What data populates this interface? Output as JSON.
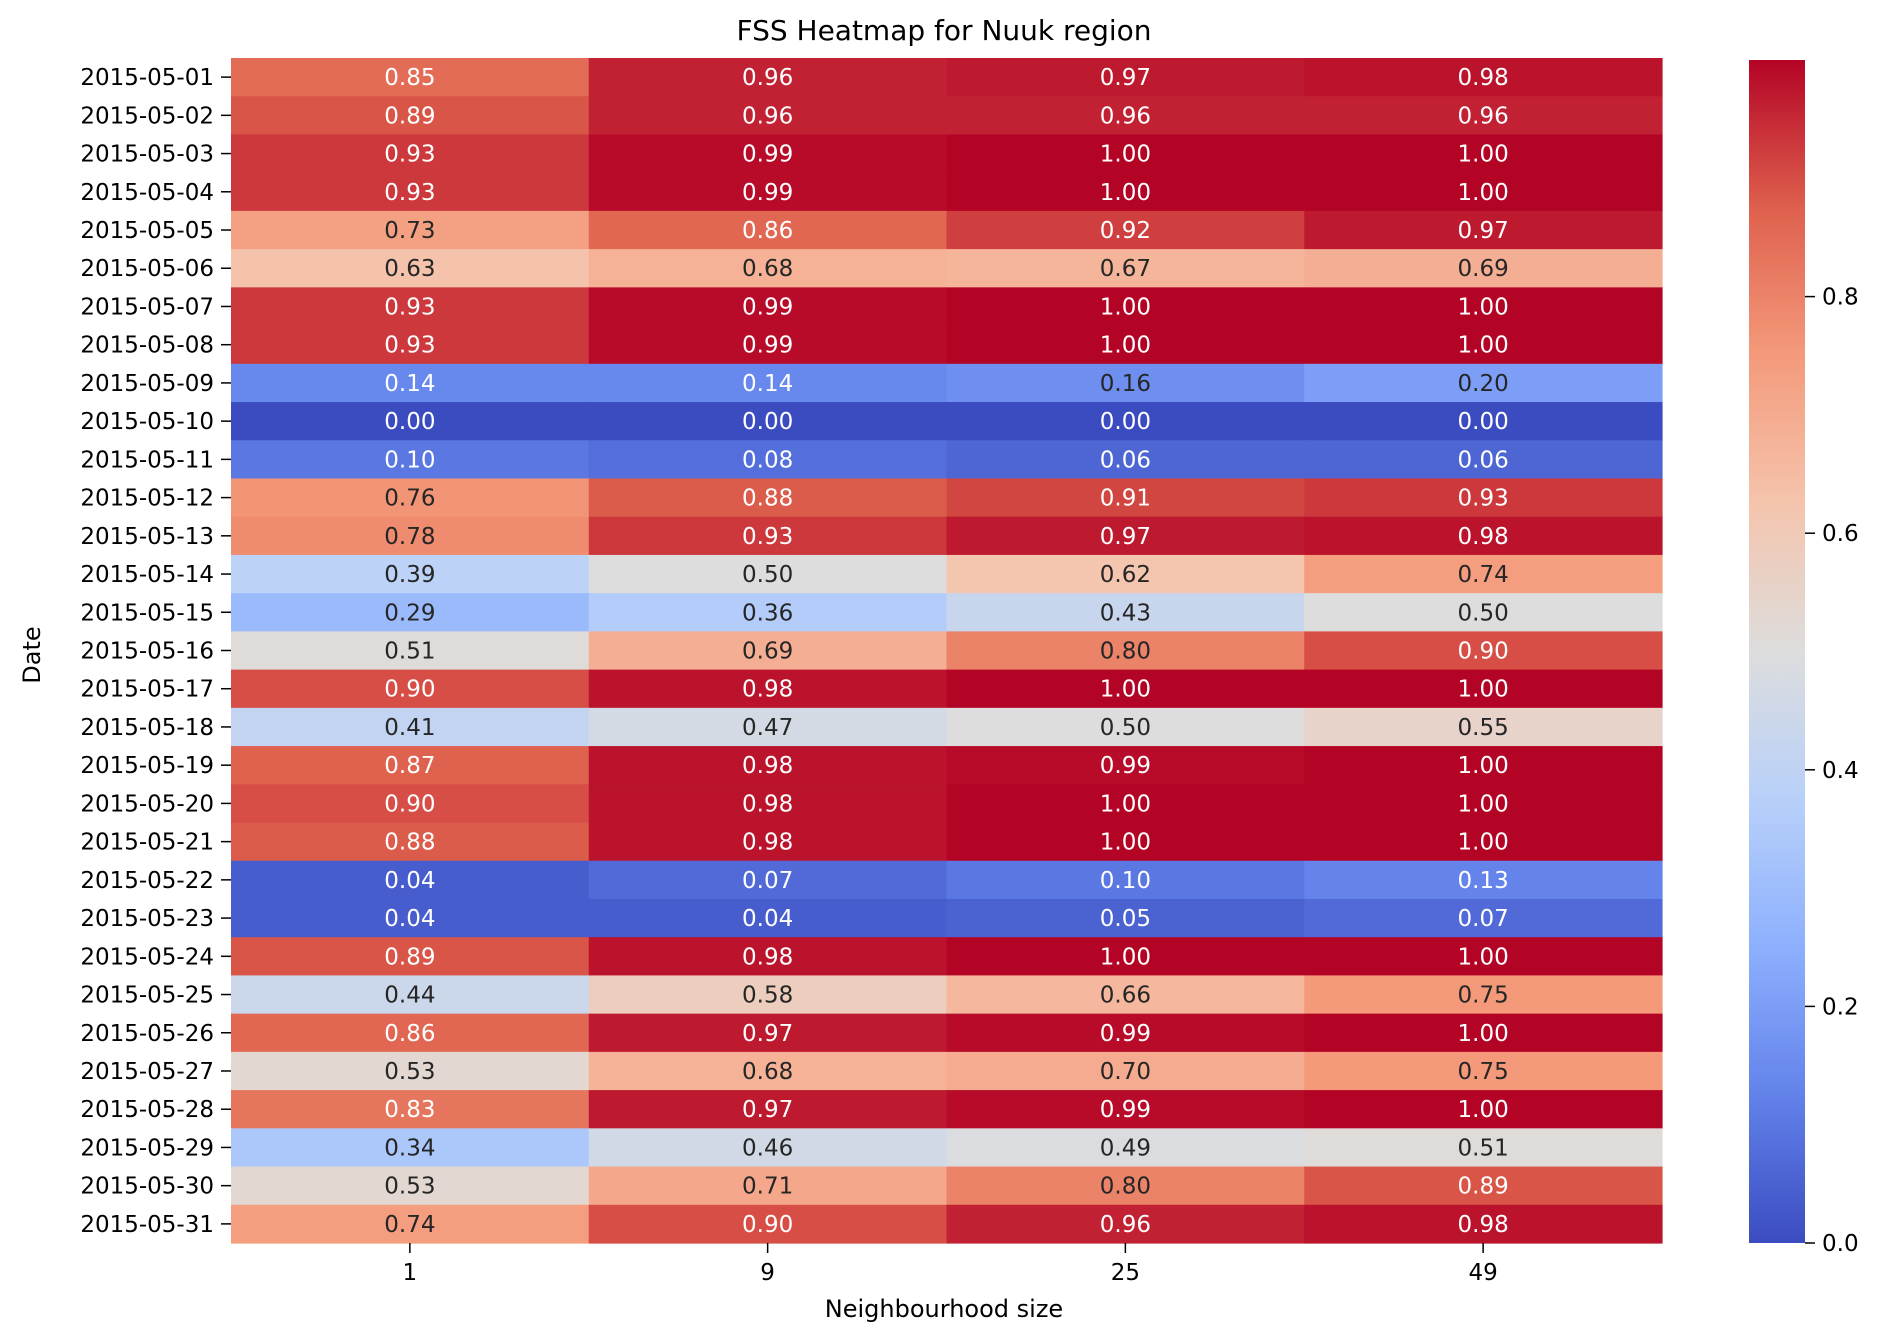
{
  "chart_data": {
    "type": "heatmap",
    "title": "FSS Heatmap for Nuuk region",
    "xlabel": "Neighbourhood size",
    "ylabel": "Date",
    "x_categories": [
      "1",
      "9",
      "25",
      "49"
    ],
    "y_categories": [
      "2015-05-01",
      "2015-05-02",
      "2015-05-03",
      "2015-05-04",
      "2015-05-05",
      "2015-05-06",
      "2015-05-07",
      "2015-05-08",
      "2015-05-09",
      "2015-05-10",
      "2015-05-11",
      "2015-05-12",
      "2015-05-13",
      "2015-05-14",
      "2015-05-15",
      "2015-05-16",
      "2015-05-17",
      "2015-05-18",
      "2015-05-19",
      "2015-05-20",
      "2015-05-21",
      "2015-05-22",
      "2015-05-23",
      "2015-05-24",
      "2015-05-25",
      "2015-05-26",
      "2015-05-27",
      "2015-05-28",
      "2015-05-29",
      "2015-05-30",
      "2015-05-31"
    ],
    "values": [
      [
        0.85,
        0.96,
        0.97,
        0.98
      ],
      [
        0.89,
        0.96,
        0.96,
        0.96
      ],
      [
        0.93,
        0.99,
        1.0,
        1.0
      ],
      [
        0.93,
        0.99,
        1.0,
        1.0
      ],
      [
        0.73,
        0.86,
        0.92,
        0.97
      ],
      [
        0.63,
        0.68,
        0.67,
        0.69
      ],
      [
        0.93,
        0.99,
        1.0,
        1.0
      ],
      [
        0.93,
        0.99,
        1.0,
        1.0
      ],
      [
        0.14,
        0.14,
        0.16,
        0.2
      ],
      [
        0.0,
        0.0,
        0.0,
        0.0
      ],
      [
        0.1,
        0.08,
        0.06,
        0.06
      ],
      [
        0.76,
        0.88,
        0.91,
        0.93
      ],
      [
        0.78,
        0.93,
        0.97,
        0.98
      ],
      [
        0.39,
        0.5,
        0.62,
        0.74
      ],
      [
        0.29,
        0.36,
        0.43,
        0.5
      ],
      [
        0.51,
        0.69,
        0.8,
        0.9
      ],
      [
        0.9,
        0.98,
        1.0,
        1.0
      ],
      [
        0.41,
        0.47,
        0.5,
        0.55
      ],
      [
        0.87,
        0.98,
        0.99,
        1.0
      ],
      [
        0.9,
        0.98,
        1.0,
        1.0
      ],
      [
        0.88,
        0.98,
        1.0,
        1.0
      ],
      [
        0.04,
        0.07,
        0.1,
        0.13
      ],
      [
        0.04,
        0.04,
        0.05,
        0.07
      ],
      [
        0.89,
        0.98,
        1.0,
        1.0
      ],
      [
        0.44,
        0.58,
        0.66,
        0.75
      ],
      [
        0.86,
        0.97,
        0.99,
        1.0
      ],
      [
        0.53,
        0.68,
        0.7,
        0.75
      ],
      [
        0.83,
        0.97,
        0.99,
        1.0
      ],
      [
        0.34,
        0.46,
        0.49,
        0.51
      ],
      [
        0.53,
        0.71,
        0.8,
        0.89
      ],
      [
        0.74,
        0.9,
        0.96,
        0.98
      ]
    ],
    "value_format_decimals": 2,
    "colormap": "coolwarm",
    "color_range": [
      0.0,
      1.0
    ],
    "colorbar_ticks": [
      "0.0",
      "0.2",
      "0.4",
      "0.6",
      "0.8"
    ],
    "colorbar_tick_values": [
      0.0,
      0.2,
      0.4,
      0.6,
      0.8
    ],
    "grid": false
  }
}
